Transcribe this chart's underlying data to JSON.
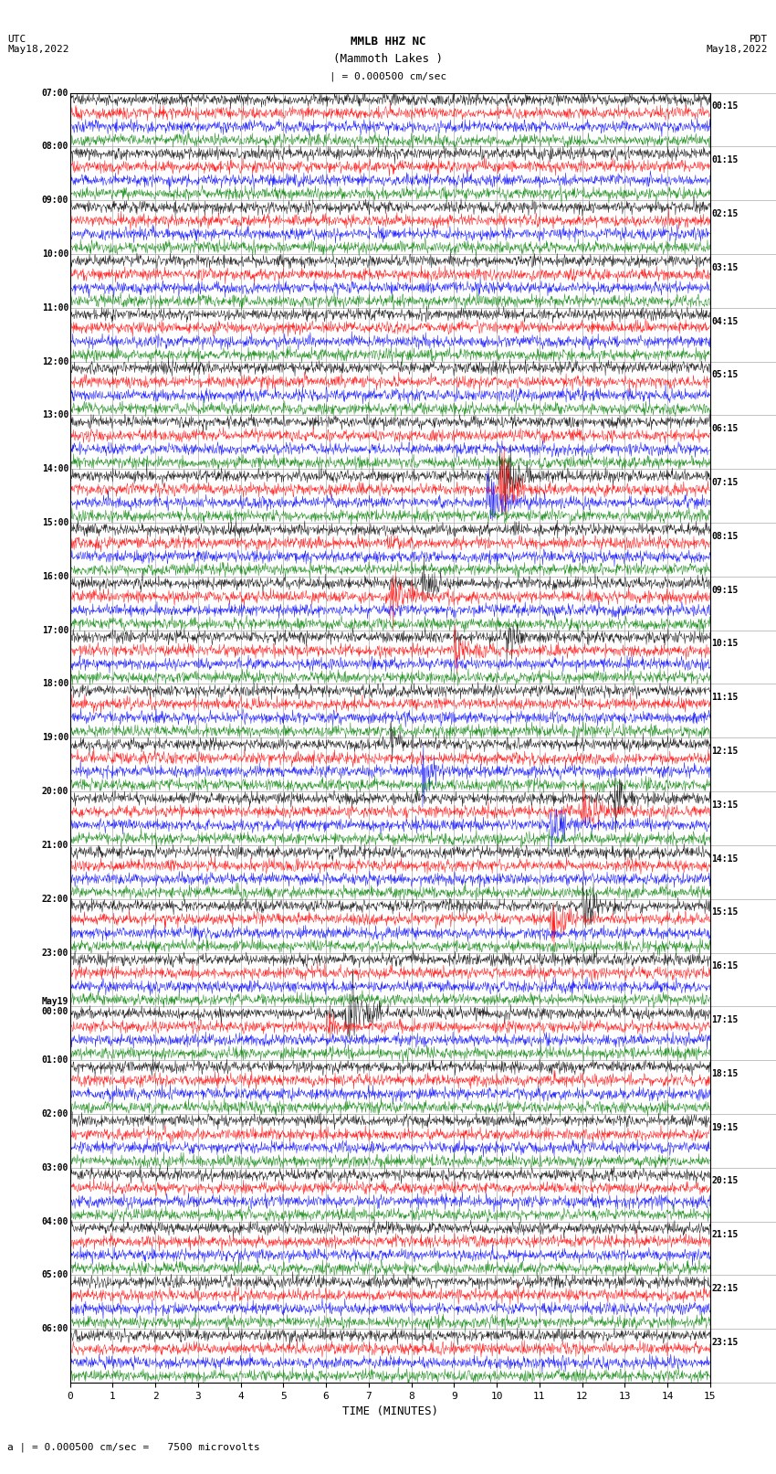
{
  "title_line1": "MMLB HHZ NC",
  "title_line2": "(Mammoth Lakes )",
  "scale_label": "| = 0.000500 cm/sec",
  "left_header": "UTC\nMay18,2022",
  "right_header": "PDT\nMay18,2022",
  "bottom_label": "TIME (MINUTES)",
  "bottom_note": "a | = 0.000500 cm/sec =   7500 microvolts",
  "xlabel_ticks": [
    0,
    1,
    2,
    3,
    4,
    5,
    6,
    7,
    8,
    9,
    10,
    11,
    12,
    13,
    14,
    15
  ],
  "left_times": [
    "07:00",
    "08:00",
    "09:00",
    "10:00",
    "11:00",
    "12:00",
    "13:00",
    "14:00",
    "15:00",
    "16:00",
    "17:00",
    "18:00",
    "19:00",
    "20:00",
    "21:00",
    "22:00",
    "23:00",
    "May19\n00:00",
    "01:00",
    "02:00",
    "03:00",
    "04:00",
    "05:00",
    "06:00"
  ],
  "right_times": [
    "00:15",
    "01:15",
    "02:15",
    "03:15",
    "04:15",
    "05:15",
    "06:15",
    "07:15",
    "08:15",
    "09:15",
    "10:15",
    "11:15",
    "12:15",
    "13:15",
    "14:15",
    "15:15",
    "16:15",
    "17:15",
    "18:15",
    "19:15",
    "20:15",
    "21:15",
    "22:15",
    "23:15"
  ],
  "num_hours": 24,
  "traces_per_hour": 4,
  "colors": [
    "black",
    "red",
    "blue",
    "green"
  ],
  "bg_color": "#ffffff",
  "plot_bg": "#ffffff",
  "grid_color": "#aaaaaa",
  "noise_amplitude": 0.12,
  "time_minutes": 15,
  "seed": 42
}
